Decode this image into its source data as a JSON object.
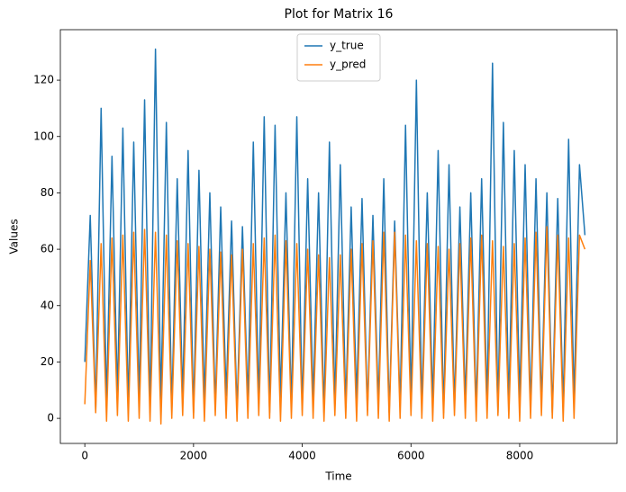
{
  "chart_data": {
    "type": "line",
    "title": "Plot for Matrix 16",
    "x_label": "Time",
    "y_label": "Values",
    "x": [
      0,
      100,
      200,
      300,
      400,
      500,
      600,
      700,
      800,
      900,
      1000,
      1100,
      1200,
      1300,
      1400,
      1500,
      1600,
      1700,
      1800,
      1900,
      2000,
      2100,
      2200,
      2300,
      2400,
      2500,
      2600,
      2700,
      2800,
      2900,
      3000,
      3100,
      3200,
      3300,
      3400,
      3500,
      3600,
      3700,
      3800,
      3900,
      4000,
      4100,
      4200,
      4300,
      4400,
      4500,
      4600,
      4700,
      4800,
      4900,
      5000,
      5100,
      5200,
      5300,
      5400,
      5500,
      5600,
      5700,
      5800,
      5900,
      6000,
      6100,
      6200,
      6300,
      6400,
      6500,
      6600,
      6700,
      6800,
      6900,
      7000,
      7100,
      7200,
      7300,
      7400,
      7500,
      7600,
      7700,
      7800,
      7900,
      8000,
      8100,
      8200,
      8300,
      8400,
      8500,
      8600,
      8700,
      8800,
      8900,
      9000,
      9100,
      9200
    ],
    "series": [
      {
        "name": "y_true",
        "color": "#1f77b4",
        "values": [
          20,
          72,
          3,
          110,
          5,
          93,
          8,
          103,
          4,
          98,
          6,
          113,
          2,
          131,
          5,
          105,
          3,
          85,
          7,
          95,
          2,
          88,
          6,
          80,
          4,
          75,
          8,
          70,
          3,
          68,
          6,
          98,
          5,
          107,
          2,
          104,
          7,
          80,
          4,
          107,
          3,
          85,
          6,
          80,
          2,
          98,
          5,
          90,
          4,
          75,
          7,
          78,
          3,
          72,
          5,
          85,
          2,
          70,
          4,
          104,
          6,
          120,
          3,
          80,
          5,
          95,
          2,
          90,
          4,
          75,
          6,
          80,
          3,
          85,
          5,
          126,
          2,
          105,
          4,
          95,
          6,
          90,
          3,
          85,
          5,
          80,
          2,
          78,
          4,
          99,
          6,
          90,
          65
        ]
      },
      {
        "name": "y_pred",
        "color": "#ff7f0e",
        "values": [
          5,
          56,
          2,
          62,
          -1,
          64,
          1,
          65,
          -1,
          66,
          0,
          67,
          -1,
          66,
          -2,
          65,
          0,
          63,
          1,
          62,
          0,
          61,
          -1,
          60,
          1,
          59,
          0,
          58,
          -1,
          60,
          0,
          62,
          1,
          64,
          0,
          65,
          -1,
          63,
          0,
          62,
          1,
          60,
          0,
          58,
          -1,
          57,
          1,
          58,
          0,
          60,
          -1,
          62,
          1,
          63,
          0,
          66,
          -1,
          66,
          0,
          65,
          1,
          63,
          0,
          62,
          -1,
          61,
          0,
          60,
          1,
          62,
          0,
          64,
          -1,
          65,
          0,
          63,
          1,
          61,
          0,
          62,
          -1,
          64,
          0,
          66,
          1,
          68,
          0,
          65,
          -1,
          64,
          0,
          65,
          60
        ]
      }
    ],
    "xlim": [
      -450,
      9790
    ],
    "ylim": [
      -8.9,
      137.9
    ],
    "xticks": [
      0,
      2000,
      4000,
      6000,
      8000
    ],
    "yticks": [
      0,
      20,
      40,
      60,
      80,
      100,
      120
    ],
    "grid": false,
    "legend": "upper center"
  }
}
